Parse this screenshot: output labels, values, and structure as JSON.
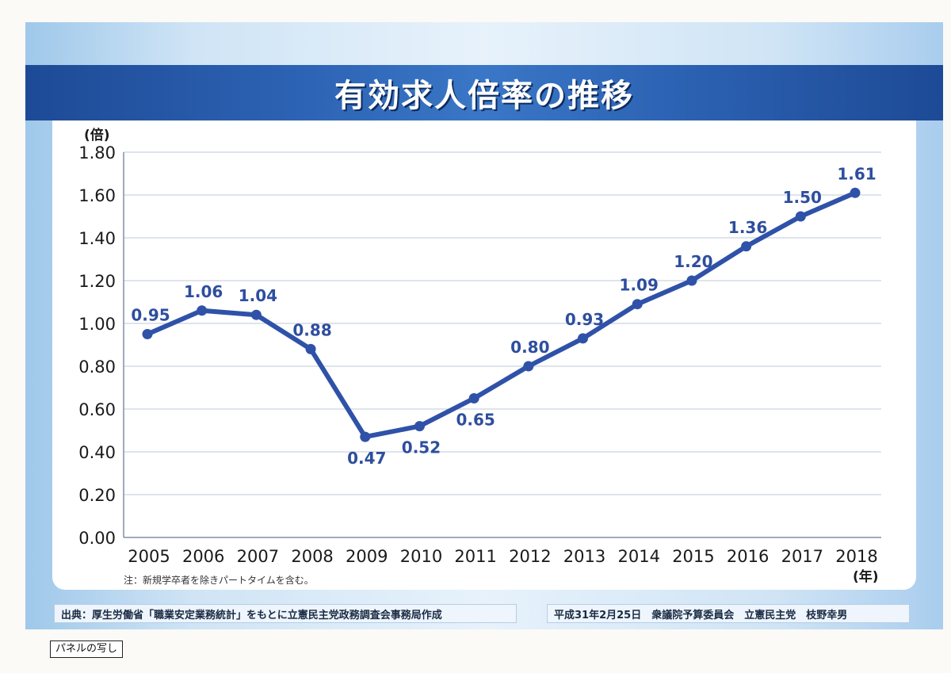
{
  "title": "有効求人倍率の推移",
  "note": "注：新規学卒者を除きパートタイムを含む。",
  "source_left": "出典：厚生労働省「職業安定業務統計」をもとに立憲民主党政務調査会事務局作成",
  "source_right": "平成31年2月25日　衆議院予算委員会　立憲民主党　枝野幸男",
  "panel_label": "パネルの写し",
  "colors": {
    "line": "#2f52a8",
    "label": "#2e4e9e",
    "grid": "#c9d3e0",
    "title_bg": "#2a5eae"
  },
  "chart_data": {
    "type": "line",
    "title": "有効求人倍率の推移",
    "ylabel": "(倍)",
    "xlabel": "(年)",
    "ylim": [
      0,
      1.8
    ],
    "yticks": [
      "0.00",
      "0.20",
      "0.40",
      "0.60",
      "0.80",
      "1.00",
      "1.20",
      "1.40",
      "1.60",
      "1.80"
    ],
    "categories": [
      "2005",
      "2006",
      "2007",
      "2008",
      "2009",
      "2010",
      "2011",
      "2012",
      "2013",
      "2014",
      "2015",
      "2016",
      "2017",
      "2018"
    ],
    "values": [
      0.95,
      1.06,
      1.04,
      0.88,
      0.47,
      0.52,
      0.65,
      0.8,
      0.93,
      1.09,
      1.2,
      1.36,
      1.5,
      1.61
    ],
    "data_labels": [
      "0.95",
      "1.06",
      "1.04",
      "0.88",
      "0.47",
      "0.52",
      "0.65",
      "0.80",
      "0.93",
      "1.09",
      "1.20",
      "1.36",
      "1.50",
      "1.61"
    ],
    "grid": true
  }
}
